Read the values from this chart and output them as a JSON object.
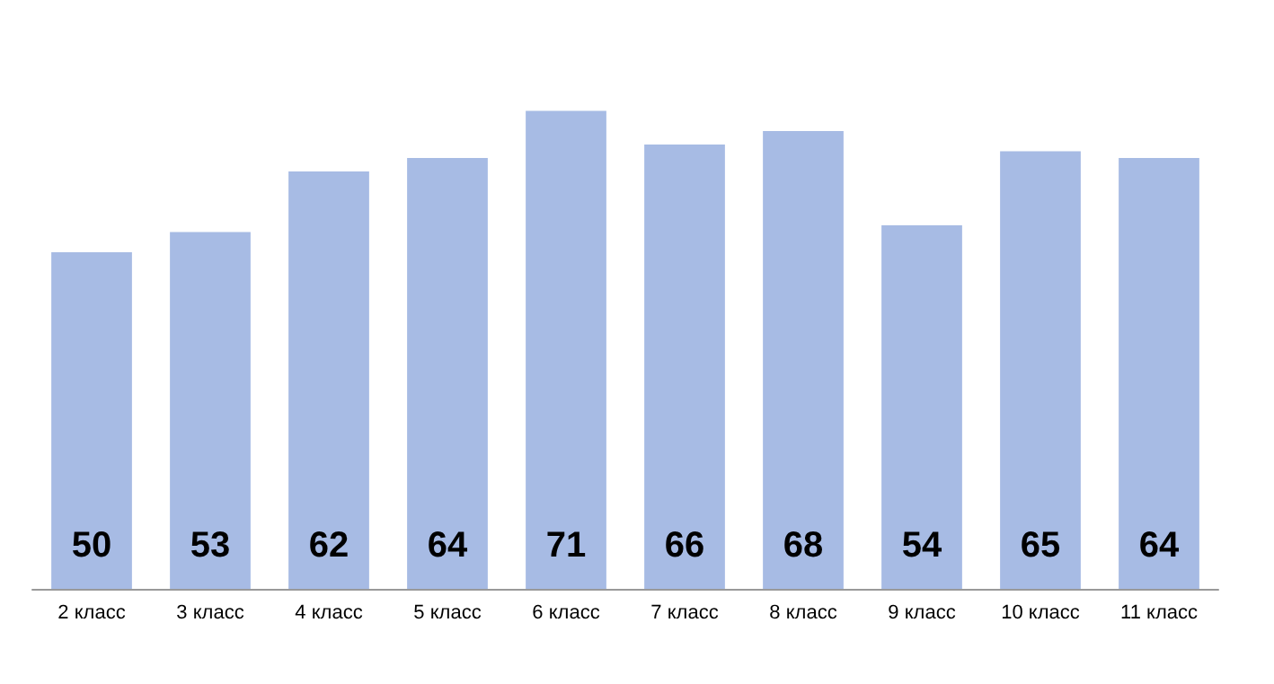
{
  "chart_data": {
    "type": "bar",
    "categories": [
      "2 класс",
      "3 класс",
      "4 класс",
      "5 класс",
      "6 класс",
      "7 класс",
      "8 класс",
      "9 класс",
      "10 класс",
      "11 класс"
    ],
    "values": [
      50,
      53,
      62,
      64,
      71,
      66,
      68,
      54,
      65,
      64
    ],
    "color": "#a7bbe4",
    "data_labels": true,
    "tick_labels": "x"
  }
}
